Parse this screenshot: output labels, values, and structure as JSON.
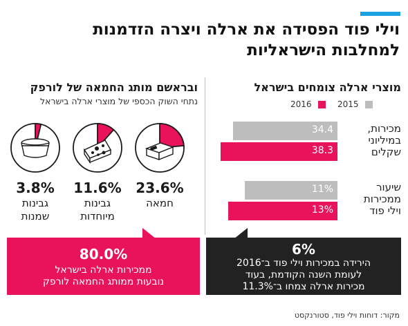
{
  "header": {
    "title_line1": "וילי פוד הפסידה את ארלה ויצרה הזדמנות",
    "title_line2": "למחלבות הישראליות"
  },
  "right_section": {
    "heading": "מוצרי ארלה צומחים בישראל"
  },
  "left_section": {
    "heading": "ובראשם מותג החמאה של לורפק",
    "subheading": "נתחי השוק הכספי של מוצרי ארלה בישראל"
  },
  "colors": {
    "accent": "#1aa3e0",
    "pink": "#e8135b",
    "gray": "#bdbdbd",
    "dark": "#222222"
  },
  "chart_data": [
    {
      "type": "bar",
      "orientation": "horizontal",
      "legend": [
        "2015",
        "2016"
      ],
      "series": [
        {
          "name": "2015",
          "color": "#bdbdbd",
          "values": [
            34.4,
            11
          ]
        },
        {
          "name": "2016",
          "color": "#e8135b",
          "values": [
            38.3,
            13
          ]
        }
      ],
      "categories": [
        {
          "lines": [
            "מכירות,",
            "במיליוני",
            "שקלים"
          ]
        },
        {
          "lines": [
            "שיעור",
            "ממכירות",
            "וילי פוד"
          ]
        }
      ],
      "value_labels": [
        [
          "34.4",
          "38.3"
        ],
        [
          "11%",
          "13%"
        ]
      ]
    },
    {
      "type": "pie",
      "items": [
        {
          "label": "חמאה",
          "lines": [
            "חמאה"
          ],
          "value": 23.6,
          "display": "23.6%",
          "icon": "butter-icon"
        },
        {
          "label": "גבינות מיוחדות",
          "lines": [
            "גבינות",
            "מיוחדות"
          ],
          "value": 11.6,
          "display": "11.6%",
          "icon": "cheese-icon"
        },
        {
          "label": "גבינות שמנות",
          "lines": [
            "גבינות",
            "שמנות"
          ],
          "value": 3.8,
          "display": "3.8%",
          "icon": "cheese-tub-icon"
        }
      ]
    }
  ],
  "callouts": {
    "left": {
      "value": "80.0%",
      "line1": "ממכירות ארלה בישראל",
      "line2": "נובעות ממותג החמאה לורפק"
    },
    "right": {
      "value": "6%",
      "line1": "הירידה במכירות וילי פוד ב־2016",
      "line2": "לעומת השנה הקודמת, בעוד",
      "line3": "מכירות ארלה צמחו ב־11.3%"
    }
  },
  "source": "מקור: דוחות וילי פוד, סטורנקסט"
}
